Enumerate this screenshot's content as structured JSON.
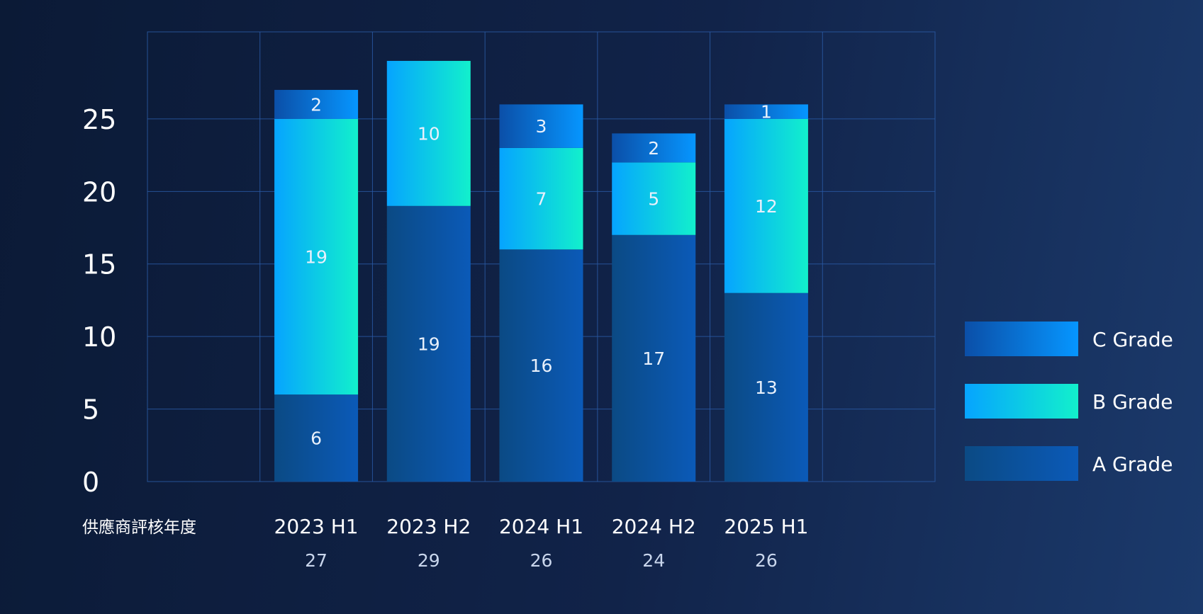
{
  "chart_data": {
    "type": "bar",
    "stacked": true,
    "title": "",
    "xlabel": "供應商評核年度",
    "ylabel": "",
    "ylim": [
      0,
      31
    ],
    "yticks": [
      0,
      5,
      10,
      15,
      20,
      25
    ],
    "categories": [
      "",
      "2023 H1",
      "2023 H2",
      "2024 H1",
      "2024 H2",
      "2025 H1",
      ""
    ],
    "series": [
      {
        "name": "A Grade",
        "values": [
          null,
          6,
          19,
          16,
          17,
          13,
          null
        ],
        "colors": [
          "#0b4a84",
          "#0b5ab8"
        ]
      },
      {
        "name": "B Grade",
        "values": [
          null,
          19,
          10,
          7,
          5,
          12,
          null
        ],
        "colors": [
          "#06a4ff",
          "#12f0cc"
        ]
      },
      {
        "name": "C Grade",
        "values": [
          null,
          2,
          null,
          3,
          2,
          1,
          null
        ],
        "colors": [
          "#0b4fa8",
          "#0696ff"
        ]
      }
    ],
    "totals": [
      null,
      27,
      29,
      26,
      24,
      26,
      null
    ],
    "legend": [
      "C Grade",
      "B Grade",
      "A Grade"
    ],
    "legend_position": "right",
    "grid": true
  }
}
